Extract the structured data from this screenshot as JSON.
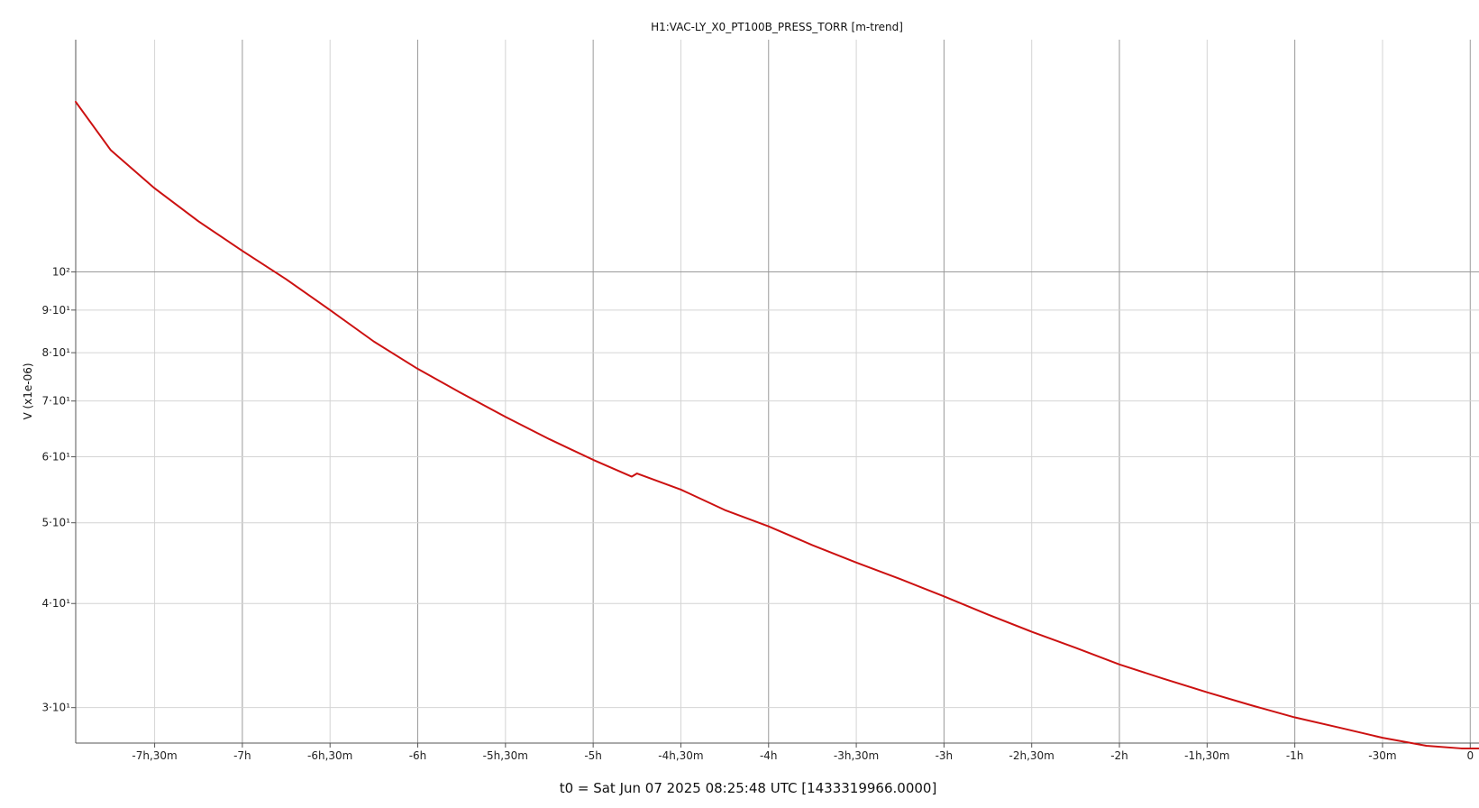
{
  "chart_data": {
    "type": "line",
    "title": "H1:VAC-LY_X0_PT100B_PRESS_TORR [m-trend]",
    "xlabel": "t0 = Sat Jun 07 2025 08:25:48 UTC [1433319966.0000]",
    "ylabel": "V (x1e-06)",
    "y_scale": "log",
    "xlim_hours": [
      -7.95,
      0.05
    ],
    "ylim": [
      27.2,
      190
    ],
    "grid": true,
    "legend": "none",
    "x_ticks": [
      {
        "value": -7.5,
        "label": "-7h,30m"
      },
      {
        "value": -7.0,
        "label": "-7h"
      },
      {
        "value": -6.5,
        "label": "-6h,30m"
      },
      {
        "value": -6.0,
        "label": "-6h"
      },
      {
        "value": -5.5,
        "label": "-5h,30m"
      },
      {
        "value": -5.0,
        "label": "-5h"
      },
      {
        "value": -4.5,
        "label": "-4h,30m"
      },
      {
        "value": -4.0,
        "label": "-4h"
      },
      {
        "value": -3.5,
        "label": "-3h,30m"
      },
      {
        "value": -3.0,
        "label": "-3h"
      },
      {
        "value": -2.5,
        "label": "-2h,30m"
      },
      {
        "value": -2.0,
        "label": "-2h"
      },
      {
        "value": -1.5,
        "label": "-1h,30m"
      },
      {
        "value": -1.0,
        "label": "-1h"
      },
      {
        "value": -0.5,
        "label": "-30m"
      },
      {
        "value": 0.0,
        "label": "0"
      }
    ],
    "y_ticks": [
      {
        "value": 100,
        "label": "10²",
        "major": true
      },
      {
        "value": 90,
        "label": "9·10¹",
        "major": false
      },
      {
        "value": 80,
        "label": "8·10¹",
        "major": false
      },
      {
        "value": 70,
        "label": "7·10¹",
        "major": false
      },
      {
        "value": 60,
        "label": "6·10¹",
        "major": false
      },
      {
        "value": 50,
        "label": "5·10¹",
        "major": false
      },
      {
        "value": 40,
        "label": "4·10¹",
        "major": false
      },
      {
        "value": 30,
        "label": "3·10¹",
        "major": false
      }
    ],
    "series": [
      {
        "color": "#cc1111",
        "x_hours": [
          -7.95,
          -7.75,
          -7.5,
          -7.25,
          -7.0,
          -6.75,
          -6.5,
          -6.25,
          -6.0,
          -5.75,
          -5.5,
          -5.25,
          -5.0,
          -4.78,
          -4.75,
          -4.5,
          -4.25,
          -4.0,
          -3.75,
          -3.5,
          -3.25,
          -3.0,
          -2.75,
          -2.5,
          -2.25,
          -2.0,
          -1.75,
          -1.5,
          -1.25,
          -1.0,
          -0.75,
          -0.5,
          -0.25,
          -0.05,
          0.05
        ],
        "values": [
          160,
          140,
          126,
          115,
          106,
          98,
          90,
          82.5,
          76.5,
          71.5,
          67,
          63,
          59.5,
          56.8,
          57.3,
          54.8,
          51.8,
          49.5,
          47,
          44.8,
          42.8,
          40.8,
          38.8,
          37,
          35.4,
          33.8,
          32.5,
          31.3,
          30.2,
          29.2,
          28.4,
          27.6,
          27,
          26.8,
          26.8
        ]
      }
    ]
  }
}
